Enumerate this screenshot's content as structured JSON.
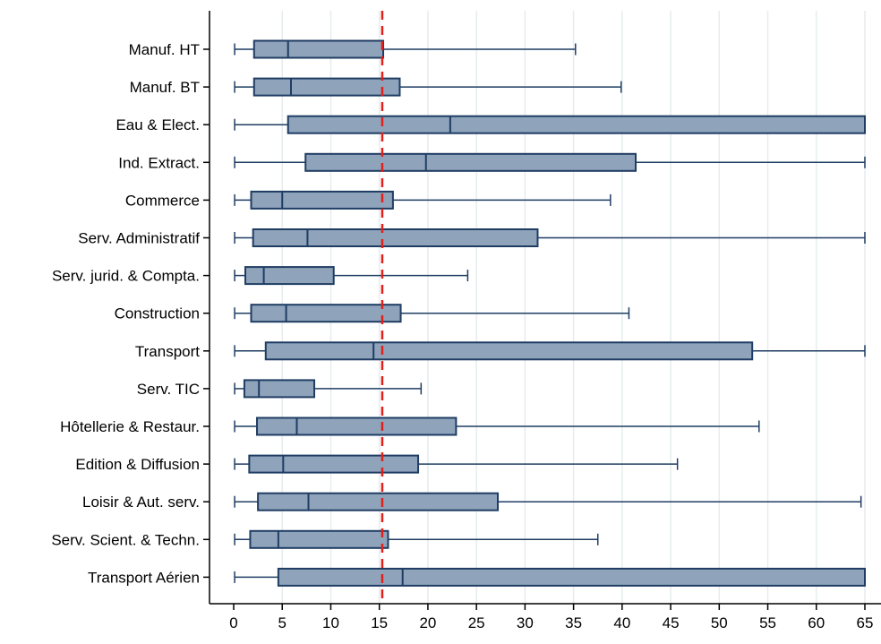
{
  "chart_data": {
    "type": "boxplot",
    "orientation": "horizontal",
    "title": "",
    "xlabel": "",
    "ylabel": "",
    "xlim": [
      0,
      65
    ],
    "x_ticks": [
      0,
      5,
      10,
      15,
      20,
      25,
      30,
      35,
      40,
      45,
      50,
      55,
      60,
      65
    ],
    "grid": "vertical",
    "reference_line": {
      "x": 15.3,
      "style": "dashed",
      "color": "#e0201b"
    },
    "box_fill": "#8fa3bb",
    "box_stroke": "#1f3d63",
    "categories": [
      {
        "label": "Manuf. HT",
        "whisker_low": 0.1,
        "q1": 2.1,
        "median": 5.6,
        "q3": 15.4,
        "whisker_high": 35.2
      },
      {
        "label": "Manuf. BT",
        "whisker_low": 0.1,
        "q1": 2.1,
        "median": 5.9,
        "q3": 17.1,
        "whisker_high": 39.9
      },
      {
        "label": "Eau & Elect.",
        "whisker_low": 0.1,
        "q1": 5.6,
        "median": 22.3,
        "q3": 65.0,
        "whisker_high": 65.0
      },
      {
        "label": "Ind. Extract.",
        "whisker_low": 0.1,
        "q1": 7.4,
        "median": 19.8,
        "q3": 41.4,
        "whisker_high": 65.0
      },
      {
        "label": "Commerce",
        "whisker_low": 0.1,
        "q1": 1.8,
        "median": 5.0,
        "q3": 16.4,
        "whisker_high": 38.8
      },
      {
        "label": "Serv. Administratif",
        "whisker_low": 0.1,
        "q1": 2.0,
        "median": 7.6,
        "q3": 31.3,
        "whisker_high": 65.0
      },
      {
        "label": "Serv. jurid. & Compta.",
        "whisker_low": 0.1,
        "q1": 1.2,
        "median": 3.1,
        "q3": 10.3,
        "whisker_high": 24.1
      },
      {
        "label": "Construction",
        "whisker_low": 0.1,
        "q1": 1.8,
        "median": 5.4,
        "q3": 17.2,
        "whisker_high": 40.7
      },
      {
        "label": "Transport",
        "whisker_low": 0.1,
        "q1": 3.3,
        "median": 14.4,
        "q3": 53.4,
        "whisker_high": 65.0
      },
      {
        "label": "Serv. TIC",
        "whisker_low": 0.1,
        "q1": 1.1,
        "median": 2.6,
        "q3": 8.3,
        "whisker_high": 19.3
      },
      {
        "label": "Hôtellerie & Restaur.",
        "whisker_low": 0.1,
        "q1": 2.4,
        "median": 6.5,
        "q3": 22.9,
        "whisker_high": 54.1
      },
      {
        "label": "Edition & Diffusion",
        "whisker_low": 0.1,
        "q1": 1.6,
        "median": 5.1,
        "q3": 19.0,
        "whisker_high": 45.7
      },
      {
        "label": "Loisir & Aut. serv.",
        "whisker_low": 0.1,
        "q1": 2.5,
        "median": 7.7,
        "q3": 27.2,
        "whisker_high": 64.6
      },
      {
        "label": "Serv. Scient. & Techn.",
        "whisker_low": 0.1,
        "q1": 1.7,
        "median": 4.6,
        "q3": 15.9,
        "whisker_high": 37.5
      },
      {
        "label": "Transport Aérien",
        "whisker_low": 0.1,
        "q1": 4.6,
        "median": 17.4,
        "q3": 65.0,
        "whisker_high": 65.0
      }
    ]
  }
}
